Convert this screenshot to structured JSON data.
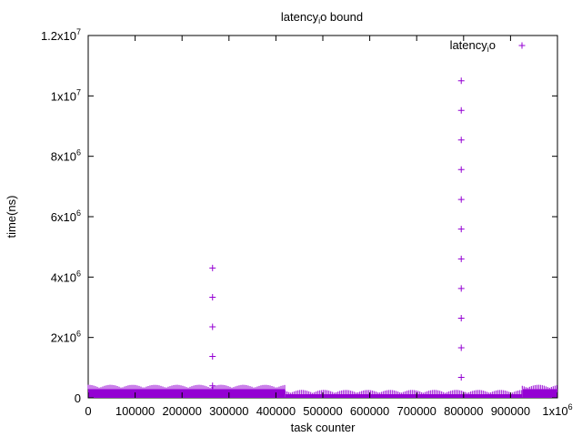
{
  "chart_data": {
    "type": "scatter",
    "title": "latencyio bound",
    "title_parts": {
      "base": "latency",
      "sub": "i",
      "tail": "o bound"
    },
    "xlabel": "task counter",
    "ylabel": "time(ns)",
    "xlim": [
      0,
      1000000
    ],
    "ylim": [
      0,
      12000000
    ],
    "x_ticks": [
      {
        "value": 0,
        "label": "0"
      },
      {
        "value": 100000,
        "label": "100000"
      },
      {
        "value": 200000,
        "label": "200000"
      },
      {
        "value": 300000,
        "label": "300000"
      },
      {
        "value": 400000,
        "label": "400000"
      },
      {
        "value": 500000,
        "label": "500000"
      },
      {
        "value": 600000,
        "label": "600000"
      },
      {
        "value": 700000,
        "label": "700000"
      },
      {
        "value": 800000,
        "label": "800000"
      },
      {
        "value": 900000,
        "label": "900000"
      },
      {
        "value": 1000000,
        "label": "1x10",
        "sup": "6"
      }
    ],
    "y_ticks": [
      {
        "value": 0,
        "label": "0"
      },
      {
        "value": 2000000,
        "label": "2x10",
        "sup": "6"
      },
      {
        "value": 4000000,
        "label": "4x10",
        "sup": "6"
      },
      {
        "value": 6000000,
        "label": "6x10",
        "sup": "6"
      },
      {
        "value": 8000000,
        "label": "8x10",
        "sup": "6"
      },
      {
        "value": 10000000,
        "label": "1x10",
        "sup": "7"
      },
      {
        "value": 12000000,
        "label": "1.2x10",
        "sup": "7"
      }
    ],
    "legend_position": "top-right",
    "grid": false,
    "series": [
      {
        "name": "latencyio",
        "name_parts": {
          "base": "latency",
          "sub": "i",
          "tail": "o"
        },
        "color": "#9400d3",
        "marker": "plus",
        "bands": [
          {
            "x_start": 0,
            "x_end": 420000,
            "y_min": 0,
            "y_max": 230000
          },
          {
            "x_start": 420000,
            "x_end": 925000,
            "y_min": 0,
            "y_max": 60000
          },
          {
            "x_start": 925000,
            "x_end": 1000000,
            "y_min": 0,
            "y_max": 230000
          }
        ],
        "outliers": [
          {
            "x": 265000,
            "y": 400000
          },
          {
            "x": 265000,
            "y": 1370000
          },
          {
            "x": 265000,
            "y": 2350000
          },
          {
            "x": 265000,
            "y": 3330000
          },
          {
            "x": 265000,
            "y": 4300000
          },
          {
            "x": 795000,
            "y": 680000
          },
          {
            "x": 795000,
            "y": 1660000
          },
          {
            "x": 795000,
            "y": 2640000
          },
          {
            "x": 795000,
            "y": 3620000
          },
          {
            "x": 795000,
            "y": 4600000
          },
          {
            "x": 795000,
            "y": 5590000
          },
          {
            "x": 795000,
            "y": 6570000
          },
          {
            "x": 795000,
            "y": 7560000
          },
          {
            "x": 795000,
            "y": 8540000
          },
          {
            "x": 795000,
            "y": 9520000
          },
          {
            "x": 795000,
            "y": 10500000
          }
        ]
      }
    ]
  }
}
